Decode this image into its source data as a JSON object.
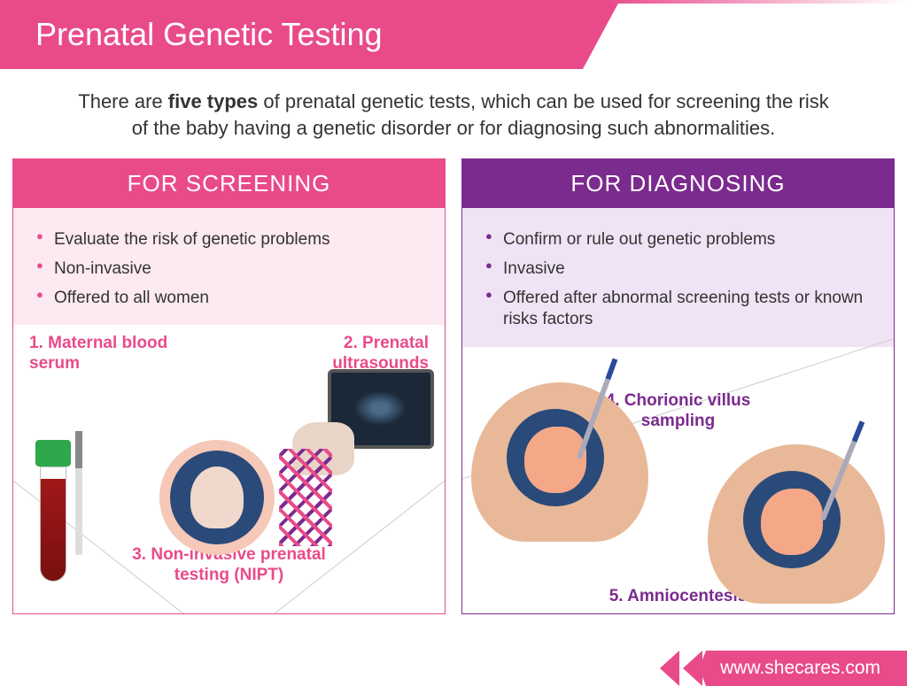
{
  "header": {
    "title": "Prenatal Genetic Testing"
  },
  "intro": {
    "prefix": "There are ",
    "bold": "five types",
    "suffix": " of prenatal genetic tests, which can be used for screening the risk of the baby having a genetic disorder or for diagnosing such abnormalities."
  },
  "panels": {
    "screening": {
      "title": "FOR SCREENING",
      "color": "#e94b8a",
      "bullets": [
        "Evaluate the risk of genetic problems",
        "Non-invasive",
        "Offered to all women"
      ],
      "tests": [
        {
          "num": "1.",
          "name": "Maternal blood serum"
        },
        {
          "num": "2.",
          "name": "Prenatal ultrasounds"
        },
        {
          "num": "3.",
          "name": "Non-invasive prenatal testing (NIPT)"
        }
      ]
    },
    "diagnosing": {
      "title": "FOR DIAGNOSING",
      "color": "#7b2a8e",
      "bullets": [
        "Confirm or rule out genetic problems",
        "Invasive",
        "Offered after abnormal screening tests or known risks factors"
      ],
      "tests": [
        {
          "num": "4.",
          "name": "Chorionic villus sampling"
        },
        {
          "num": "5.",
          "name": "Amniocentesis"
        }
      ]
    }
  },
  "footer": {
    "url": "www.shecares.com"
  }
}
